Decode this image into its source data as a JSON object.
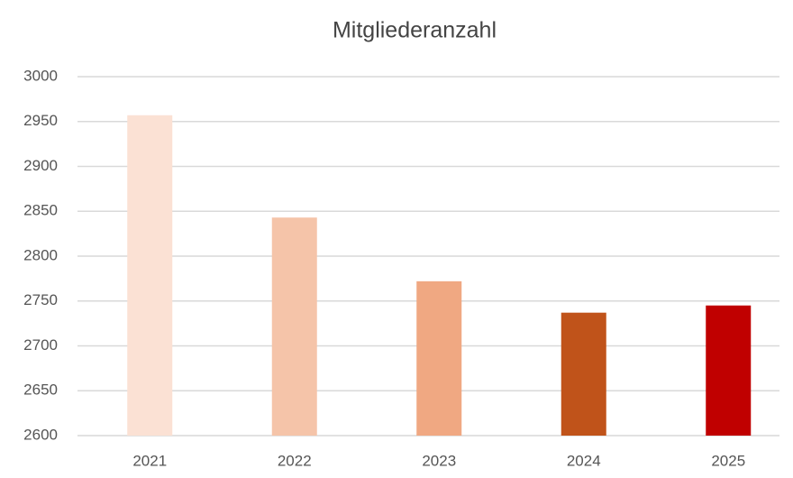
{
  "chart_data": {
    "type": "bar",
    "title": "Mitgliederanzahl",
    "categories": [
      "2021",
      "2022",
      "2023",
      "2024",
      "2025"
    ],
    "values": [
      2957,
      2843,
      2772,
      2737,
      2745
    ],
    "colors": [
      "#fbe1d4",
      "#f5c4a9",
      "#f0a882",
      "#c0531a",
      "#c00000"
    ],
    "ylim": [
      2600,
      3000
    ],
    "yticks": [
      2600,
      2650,
      2700,
      2750,
      2800,
      2850,
      2900,
      2950,
      3000
    ],
    "grid": true
  }
}
